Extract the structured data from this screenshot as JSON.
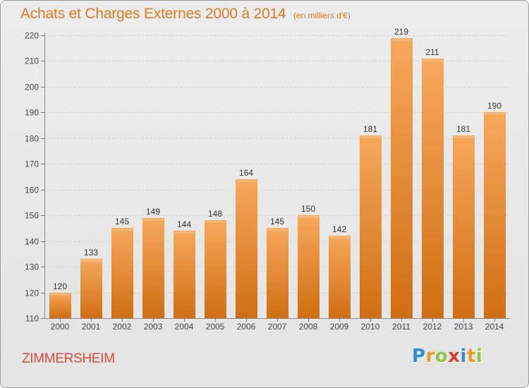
{
  "header": {
    "title": "Achats et Charges Externes 2000 à 2014",
    "subtitle": "(en milliers d'€)"
  },
  "footer": {
    "commune": "ZIMMERSHEIM",
    "brand": "Proxiti",
    "brand_letters": [
      "P",
      "r",
      "o",
      "x",
      "i",
      "t",
      "i"
    ],
    "brand_colors": [
      "#2f8fd6",
      "#e89a1e",
      "#8cc63e",
      "#e23a2e",
      "#2f8fd6",
      "#e89a1e",
      "#8cc63e"
    ]
  },
  "colors": {
    "bar_top": "#f7a85a",
    "bar_bottom": "#d06e12",
    "title": "#e07a22",
    "commune": "#d84a3c"
  },
  "chart_data": {
    "type": "bar",
    "title": "Achats et Charges Externes 2000 à 2014",
    "subtitle": "(en milliers d'€)",
    "xlabel": "",
    "ylabel": "",
    "categories": [
      "2000",
      "2001",
      "2002",
      "2003",
      "2004",
      "2005",
      "2006",
      "2007",
      "2008",
      "2009",
      "2010",
      "2011",
      "2012",
      "2013",
      "2014"
    ],
    "values": [
      120,
      133,
      145,
      149,
      144,
      148,
      164,
      145,
      150,
      142,
      181,
      219,
      211,
      181,
      190
    ],
    "ylim": [
      110,
      220
    ],
    "yticks": [
      110,
      120,
      130,
      140,
      150,
      160,
      170,
      180,
      190,
      200,
      210,
      220
    ],
    "grid": true,
    "legend": "none"
  }
}
